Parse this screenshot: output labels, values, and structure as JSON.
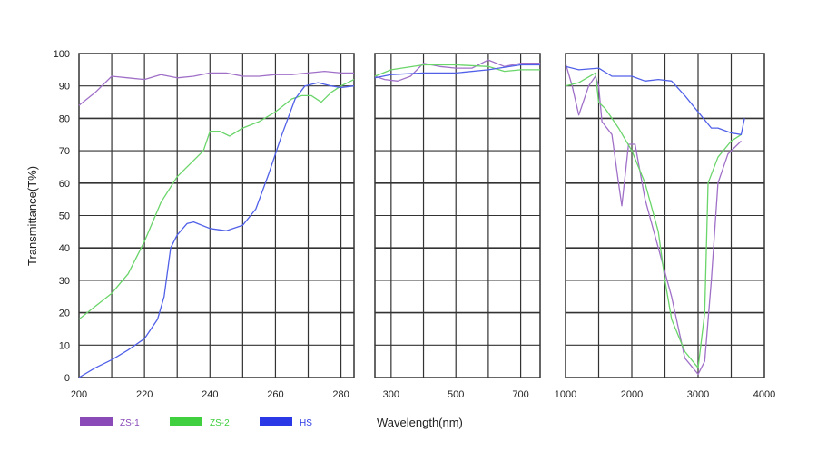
{
  "chart_data": {
    "type": "line",
    "ylabel": "Transmittance(T%)",
    "xlabel": "Wavelength(nm)",
    "ylim": [
      0,
      100
    ],
    "yticks": [
      "0",
      "10",
      "20",
      "30",
      "40",
      "50",
      "60",
      "70",
      "80",
      "90",
      "100"
    ],
    "grid": true,
    "legend_placement": "bottom-left",
    "legend": [
      {
        "name": "ZS-1",
        "color": "#8a4bb8"
      },
      {
        "name": "ZS-2",
        "color": "#3fcf3f"
      },
      {
        "name": "HS",
        "color": "#2a38e6"
      }
    ],
    "panels": [
      {
        "xlim": [
          200,
          284
        ],
        "xticks": [
          "200",
          "220",
          "240",
          "260",
          "280"
        ],
        "xtick_values": [
          200,
          220,
          240,
          260,
          280
        ],
        "grid_step": 10,
        "series": [
          {
            "name": "ZS-1",
            "x": [
              200,
              205,
              210,
              215,
              220,
              225,
              230,
              235,
              240,
              245,
              250,
              255,
              260,
              265,
              270,
              275,
              280,
              284
            ],
            "y": [
              84,
              88,
              93,
              92.5,
              92,
              93.5,
              92.5,
              93,
              94,
              94,
              93,
              93,
              93.5,
              93.5,
              94,
              94.5,
              94,
              94
            ]
          },
          {
            "name": "ZS-2",
            "x": [
              200,
              205,
              210,
              215,
              220,
              225,
              230,
              235,
              238,
              240,
              243,
              246,
              250,
              255,
              260,
              265,
              268,
              271,
              274,
              277,
              280,
              284
            ],
            "y": [
              18,
              22,
              26,
              32,
              42,
              54,
              62,
              67,
              70,
              76,
              76,
              74.5,
              77,
              79,
              82,
              86,
              87,
              87,
              85,
              88,
              90,
              92
            ]
          },
          {
            "name": "HS",
            "x": [
              200,
              205,
              210,
              215,
              220,
              224,
              226,
              228,
              230,
              233,
              235,
              240,
              245,
              250,
              254,
              258,
              262,
              266,
              269,
              273,
              277,
              280,
              284
            ],
            "y": [
              0,
              3,
              5.5,
              8.5,
              12,
              18,
              25,
              40,
              44,
              47.5,
              48,
              46,
              45.3,
              47,
              52,
              63,
              75,
              86,
              90,
              91,
              90,
              89.5,
              90
            ]
          }
        ]
      },
      {
        "xlim": [
          250,
          760
        ],
        "xticks": [
          "300",
          "500",
          "700"
        ],
        "xtick_values": [
          300,
          500,
          700
        ],
        "grid_step": 100,
        "series": [
          {
            "name": "ZS-1",
            "x": [
              250,
              280,
              320,
              360,
              400,
              450,
              500,
              550,
              600,
              650,
              700,
              760
            ],
            "y": [
              93,
              92,
              91.5,
              93,
              97,
              96,
              95.5,
              95.5,
              98,
              96,
              97,
              97
            ]
          },
          {
            "name": "ZS-2",
            "x": [
              250,
              300,
              400,
              500,
              600,
              650,
              700,
              760
            ],
            "y": [
              93,
              95,
              96.5,
              96.5,
              96,
              94.5,
              95,
              95
            ]
          },
          {
            "name": "HS",
            "x": [
              250,
              300,
              400,
              500,
              600,
              700,
              760
            ],
            "y": [
              92.5,
              93.5,
              94,
              94,
              95,
              96.5,
              96.5
            ]
          }
        ]
      },
      {
        "xlim": [
          1000,
          4000
        ],
        "xticks": [
          "1000",
          "2000",
          "3000",
          "4000"
        ],
        "xtick_values": [
          1000,
          2000,
          3000,
          4000
        ],
        "grid_step": 500,
        "series": [
          {
            "name": "ZS-1",
            "x": [
              1000,
              1100,
              1200,
              1350,
              1450,
              1500,
              1550,
              1700,
              1800,
              1850,
              1950,
              2050,
              2200,
              2400,
              2600,
              2800,
              3000,
              3100,
              3200,
              3300,
              3450,
              3650
            ],
            "y": [
              97,
              90,
              81,
              90,
              93,
              90,
              79,
              75,
              60,
              53,
              72,
              72,
              55,
              40,
              25,
              6,
              1,
              5,
              30,
              60,
              69,
              73
            ]
          },
          {
            "name": "ZS-2",
            "x": [
              1000,
              1200,
              1450,
              1500,
              1600,
              1800,
              2000,
              2200,
              2400,
              2500,
              2600,
              2800,
              3000,
              3100,
              3150,
              3300,
              3500,
              3650
            ],
            "y": [
              90,
              91,
              94,
              85,
              83,
              77,
              70,
              60,
              45,
              30,
              18,
              8,
              3,
              20,
              60,
              68,
              73,
              75
            ]
          },
          {
            "name": "HS",
            "x": [
              1000,
              1200,
              1500,
              1700,
              2000,
              2200,
              2400,
              2600,
              2800,
              3000,
              3200,
              3300,
              3500,
              3650,
              3700
            ],
            "y": [
              96,
              95,
              95.5,
              93,
              93,
              91.5,
              92,
              91.5,
              87,
              82,
              77,
              77,
              75.5,
              75,
              80
            ]
          }
        ]
      }
    ]
  }
}
